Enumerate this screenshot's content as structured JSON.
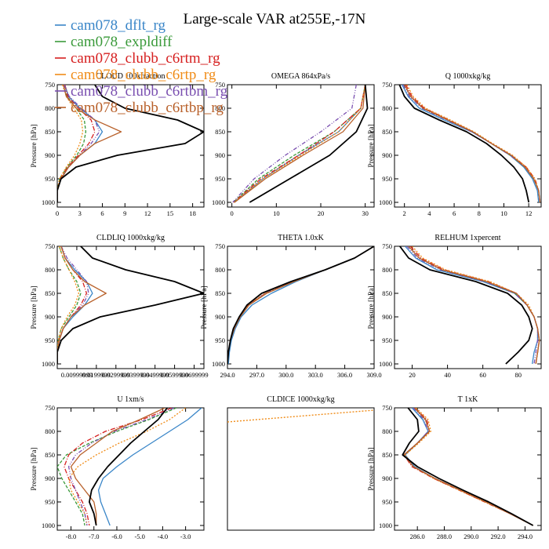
{
  "title": "Large-scale VAR at255E,-17N",
  "legend": [
    {
      "name": "cam078_dflt_rg",
      "color": "#3a86c8"
    },
    {
      "name": "cam078_expldiff",
      "color": "#3a9a3a"
    },
    {
      "name": "cam078_clubb_c6rtm_rg",
      "color": "#d62020"
    },
    {
      "name": "cam078_clubb_c6rtp_rg",
      "color": "#f08c18"
    },
    {
      "name": "cam078_clubb_c6rtbm_rg",
      "color": "#7a4fb0"
    },
    {
      "name": "cam078_clubb_c6rtbp_rg",
      "color": "#b8602a"
    }
  ],
  "black_color": "#000000",
  "chart_data": [
    {
      "type": "line",
      "title": "CLOUD 100xfraction",
      "ylabel": "Pressure [hPa]",
      "xlim": [
        0,
        19.5
      ],
      "ylim": [
        1010,
        750
      ],
      "xticks": [
        0,
        3,
        6,
        9,
        12,
        15,
        18
      ],
      "xticklabels": [
        "0",
        "3",
        "6",
        "9",
        "12",
        "15",
        "18"
      ],
      "yticks": [
        750,
        800,
        850,
        900,
        950,
        1000
      ],
      "y": [
        750,
        775,
        800,
        825,
        850,
        875,
        900,
        925,
        950,
        975,
        1000
      ],
      "black": [
        5,
        6,
        9,
        16,
        19.5,
        17,
        8,
        2.5,
        0.5,
        0,
        0
      ],
      "series": [
        {
          "values": [
            1.0,
            1.5,
            3.0,
            5.0,
            6.0,
            5.0,
            3.0,
            1.5,
            0.5,
            0,
            0
          ]
        },
        {
          "values": [
            0.8,
            1.3,
            2.5,
            3.6,
            3.8,
            3.5,
            2.6,
            1.3,
            0.3,
            0,
            0
          ]
        },
        {
          "values": [
            1.0,
            1.4,
            2.8,
            4.5,
            5.0,
            4.2,
            2.8,
            1.4,
            0.4,
            0,
            0
          ]
        },
        {
          "values": [
            0.7,
            1.2,
            2.2,
            3.2,
            3.4,
            3.0,
            2.3,
            1.2,
            0.3,
            0,
            0
          ]
        },
        {
          "values": [
            0.9,
            1.6,
            3.2,
            5.0,
            5.6,
            4.5,
            3.0,
            1.5,
            0.5,
            0,
            0
          ]
        },
        {
          "values": [
            0.8,
            1.2,
            2.5,
            5.0,
            8.5,
            5.0,
            3.0,
            1.5,
            0.5,
            0,
            0
          ]
        }
      ]
    },
    {
      "type": "line",
      "title": "OMEGA 864xPa/s",
      "ylabel": "",
      "xlim": [
        -1,
        32
      ],
      "ylim": [
        1010,
        750
      ],
      "xticks": [
        0,
        10,
        20,
        30
      ],
      "xticklabels": [
        "0",
        "10",
        "20",
        "30"
      ],
      "yticks": [
        750,
        800,
        850,
        900,
        950,
        1000
      ],
      "y": [
        750,
        800,
        850,
        900,
        950,
        1000
      ],
      "black": [
        30,
        30.5,
        28,
        22,
        13,
        4
      ],
      "series": [
        {
          "values": [
            30,
            29,
            24,
            15,
            7,
            0.5
          ]
        },
        {
          "values": [
            30,
            29,
            23,
            14,
            6,
            0.3
          ]
        },
        {
          "values": [
            30,
            29,
            23,
            15,
            6.5,
            0.4
          ]
        },
        {
          "values": [
            30,
            29,
            24,
            15.5,
            7,
            0.5
          ]
        },
        {
          "values": [
            28,
            27,
            20,
            12,
            5,
            0.2
          ]
        },
        {
          "values": [
            30,
            29.5,
            25,
            16,
            7.5,
            0.6
          ]
        }
      ]
    },
    {
      "type": "line",
      "title": "Q 1000xkg/kg",
      "ylabel": "Pressure [hPa]",
      "xlim": [
        1.2,
        13
      ],
      "ylim": [
        1010,
        750
      ],
      "xticks": [
        2,
        4,
        6,
        8,
        10,
        12
      ],
      "xticklabels": [
        "2",
        "4",
        "6",
        "8",
        "10",
        "12"
      ],
      "yticks": [
        750,
        800,
        850,
        900,
        950,
        1000
      ],
      "y": [
        750,
        775,
        800,
        825,
        850,
        875,
        900,
        925,
        950,
        975,
        1000
      ],
      "black": [
        1.6,
        2.0,
        2.8,
        4.8,
        7.0,
        8.6,
        9.8,
        10.8,
        11.5,
        11.8,
        12.0
      ],
      "series": [
        {
          "values": [
            1.8,
            2.3,
            3.2,
            5.2,
            7.4,
            9.0,
            10.5,
            11.6,
            12.3,
            12.7,
            12.8
          ]
        },
        {
          "values": [
            2.0,
            2.5,
            3.5,
            5.5,
            7.5,
            9.0,
            10.5,
            11.7,
            12.4,
            12.8,
            12.9
          ]
        },
        {
          "values": [
            2.1,
            2.6,
            3.6,
            5.6,
            7.5,
            9.0,
            10.6,
            11.8,
            12.5,
            12.8,
            12.9
          ]
        },
        {
          "values": [
            2.2,
            2.7,
            3.7,
            5.7,
            7.6,
            9.1,
            10.7,
            11.8,
            12.5,
            12.8,
            12.9
          ]
        },
        {
          "values": [
            1.9,
            2.4,
            3.4,
            5.4,
            7.4,
            9.0,
            10.5,
            11.7,
            12.4,
            12.8,
            12.9
          ]
        },
        {
          "values": [
            2.0,
            2.5,
            3.5,
            5.5,
            7.5,
            9.0,
            10.6,
            11.7,
            12.4,
            12.8,
            12.9
          ]
        }
      ]
    },
    {
      "type": "line",
      "title": "CLDLIQ 1000xkg/kg",
      "ylabel": "Pressure [hPa]",
      "xlim": [
        0,
        0.075
      ],
      "ylim": [
        1010,
        750
      ],
      "xticks": [
        0.01,
        0.02,
        0.03,
        0.04,
        0.05,
        0.06,
        0.07
      ],
      "xticklabels": [
        "0.00999999",
        "0.0199999",
        "0.0299999",
        "0.0399999",
        "0.0499999",
        "0.0599999",
        "0.0699999"
      ],
      "yticks": [
        750,
        800,
        850,
        900,
        950,
        1000
      ],
      "y": [
        750,
        775,
        800,
        825,
        850,
        875,
        900,
        925,
        950,
        975,
        1000
      ],
      "black": [
        0.012,
        0.018,
        0.035,
        0.06,
        0.075,
        0.05,
        0.022,
        0.008,
        0.002,
        0,
        0
      ],
      "series": [
        {
          "values": [
            0.002,
            0.004,
            0.009,
            0.015,
            0.018,
            0.014,
            0.008,
            0.003,
            0.001,
            0,
            0
          ]
        },
        {
          "values": [
            0.001,
            0.003,
            0.006,
            0.01,
            0.012,
            0.01,
            0.006,
            0.002,
            0.0005,
            0,
            0
          ]
        },
        {
          "values": [
            0.002,
            0.004,
            0.008,
            0.013,
            0.015,
            0.012,
            0.007,
            0.003,
            0.001,
            0,
            0
          ]
        },
        {
          "values": [
            0.001,
            0.003,
            0.006,
            0.009,
            0.011,
            0.009,
            0.005,
            0.002,
            0.0005,
            0,
            0
          ]
        },
        {
          "values": [
            0.002,
            0.005,
            0.01,
            0.015,
            0.016,
            0.013,
            0.007,
            0.003,
            0.001,
            0,
            0
          ]
        },
        {
          "values": [
            0.002,
            0.004,
            0.008,
            0.014,
            0.025,
            0.014,
            0.007,
            0.003,
            0.001,
            0,
            0
          ]
        }
      ]
    },
    {
      "type": "line",
      "title": "THETA 1.0xK",
      "ylabel": "Pressure [hPa]",
      "xlim": [
        294,
        309
      ],
      "ylim": [
        1010,
        750
      ],
      "xticks": [
        294,
        297,
        300,
        303,
        306,
        309
      ],
      "xticklabels": [
        "294.0",
        "297.0",
        "300.0",
        "303.0",
        "306.0",
        "309.0"
      ],
      "yticks": [
        750,
        800,
        850,
        900,
        950,
        1000
      ],
      "y": [
        750,
        775,
        800,
        825,
        850,
        875,
        900,
        925,
        950,
        975,
        1000
      ],
      "black": [
        309,
        307,
        304,
        300.5,
        297.5,
        296.0,
        295.2,
        294.6,
        294.3,
        294.1,
        294.0
      ],
      "series": [
        {
          "values": [
            309,
            307,
            304,
            301,
            298.5,
            296.5,
            295.4,
            294.8,
            294.4,
            294.2,
            294.1
          ]
        },
        {
          "values": [
            309,
            307,
            304,
            300.8,
            298.0,
            296.2,
            295.3,
            294.7,
            294.3,
            294.1,
            294.0
          ]
        },
        {
          "values": [
            309,
            307,
            304,
            300.7,
            297.9,
            296.1,
            295.2,
            294.7,
            294.3,
            294.1,
            294.0
          ]
        },
        {
          "values": [
            309,
            307,
            304,
            300.6,
            297.8,
            296.1,
            295.2,
            294.6,
            294.3,
            294.1,
            294.0
          ]
        },
        {
          "values": [
            309,
            307,
            304,
            300.7,
            297.9,
            296.2,
            295.3,
            294.7,
            294.3,
            294.1,
            294.0
          ]
        },
        {
          "values": [
            309,
            307,
            304,
            300.8,
            298.0,
            296.2,
            295.3,
            294.7,
            294.3,
            294.1,
            294.0
          ]
        }
      ]
    },
    {
      "type": "line",
      "title": "RELHUM 1xpercent",
      "ylabel": "Pressure [hPa]",
      "xlim": [
        10,
        93
      ],
      "ylim": [
        1010,
        750
      ],
      "xticks": [
        20,
        40,
        60,
        80
      ],
      "xticklabels": [
        "20",
        "40",
        "60",
        "80"
      ],
      "yticks": [
        750,
        800,
        850,
        900,
        950,
        1000
      ],
      "y": [
        750,
        775,
        800,
        825,
        850,
        875,
        900,
        925,
        950,
        975,
        1000
      ],
      "black": [
        13,
        18,
        30,
        56,
        74,
        82,
        86,
        88,
        86,
        80,
        73
      ],
      "series": [
        {
          "values": [
            16,
            22,
            34,
            60,
            78,
            85,
            89,
            91,
            91,
            89,
            88
          ]
        },
        {
          "values": [
            18,
            24,
            37,
            62,
            78,
            85,
            89,
            91,
            92,
            91,
            90
          ]
        },
        {
          "values": [
            19,
            25,
            38,
            63,
            79,
            85,
            89,
            91,
            92,
            91,
            90
          ]
        },
        {
          "values": [
            20,
            26,
            39,
            64,
            79,
            86,
            89,
            91,
            92,
            91,
            90
          ]
        },
        {
          "values": [
            17,
            23,
            36,
            61,
            78,
            85,
            89,
            91,
            91,
            90,
            89
          ]
        },
        {
          "values": [
            18,
            24,
            37,
            62,
            79,
            85,
            89,
            91,
            92,
            91,
            90
          ]
        }
      ]
    },
    {
      "type": "line",
      "title": "U 1xm/s",
      "ylabel": "Pressure [hPa]",
      "xlim": [
        -8.6,
        -2.2
      ],
      "ylim": [
        1010,
        750
      ],
      "xticks": [
        -8,
        -7,
        -6,
        -5,
        -4,
        -3
      ],
      "xticklabels": [
        "-8.0",
        "-7.0",
        "-6.0",
        "-5.0",
        "-4.0",
        "-3.0"
      ],
      "yticks": [
        750,
        800,
        850,
        900,
        950,
        1000
      ],
      "y": [
        750,
        775,
        800,
        825,
        850,
        875,
        900,
        925,
        950,
        975,
        1000
      ],
      "black": [
        -3.8,
        -4.2,
        -4.8,
        -5.4,
        -5.9,
        -6.4,
        -6.8,
        -7.1,
        -7.2,
        -7.0,
        -6.9
      ],
      "series": [
        {
          "values": [
            -2.3,
            -2.9,
            -3.7,
            -4.5,
            -5.3,
            -6.0,
            -6.6,
            -6.8,
            -6.7,
            -6.5,
            -6.3
          ]
        },
        {
          "values": [
            -3.4,
            -4.6,
            -6.0,
            -7.2,
            -8.2,
            -8.6,
            -8.4,
            -8.1,
            -7.8,
            -7.5,
            -7.4
          ]
        },
        {
          "values": [
            -3.6,
            -4.9,
            -6.5,
            -7.5,
            -8.1,
            -8.3,
            -8.1,
            -7.8,
            -7.5,
            -7.3,
            -7.2
          ]
        },
        {
          "values": [
            -3.0,
            -3.7,
            -4.7,
            -5.9,
            -6.9,
            -7.7,
            -8.1,
            -8.0,
            -7.7,
            -7.4,
            -7.3
          ]
        },
        {
          "values": [
            -3.5,
            -4.7,
            -6.1,
            -7.1,
            -7.8,
            -8.1,
            -8.0,
            -7.8,
            -7.6,
            -7.4,
            -7.3
          ]
        },
        {
          "values": [
            -3.9,
            -5.0,
            -6.2,
            -6.9,
            -7.6,
            -8.0,
            -7.8,
            -7.4,
            -7.0,
            -6.9,
            -6.9
          ]
        }
      ]
    },
    {
      "type": "line",
      "title": "CLDICE 1000xkg/kg",
      "ylabel": "",
      "xlim": [
        0,
        1
      ],
      "ylim": [
        1010,
        750
      ],
      "xticks": [],
      "xticklabels": [],
      "yticks": [],
      "y": [
        750,
        1010
      ],
      "black": null,
      "series": [
        {
          "values": [
            null,
            null
          ]
        },
        {
          "values": [
            null,
            null
          ]
        },
        {
          "values": [
            null,
            null
          ]
        },
        {
          "values": [
            null,
            null
          ]
        },
        {
          "values": [
            null,
            null
          ]
        },
        {
          "values": [
            null,
            null
          ]
        }
      ],
      "dotted": {
        "x": [
          0.0,
          1.0
        ],
        "y": [
          780,
          755
        ]
      }
    },
    {
      "type": "line",
      "title": "T 1xK",
      "ylabel": "Pressure [hPa]",
      "xlim": [
        284.3,
        295.2
      ],
      "ylim": [
        1010,
        750
      ],
      "xticks": [
        286,
        288,
        290,
        292,
        294
      ],
      "xticklabels": [
        "286.0",
        "288.0",
        "290.0",
        "292.0",
        "294.0"
      ],
      "yticks": [
        750,
        800,
        850,
        900,
        950,
        1000
      ],
      "y": [
        750,
        775,
        800,
        825,
        850,
        875,
        900,
        925,
        950,
        975,
        1000
      ],
      "black": [
        285.3,
        286.0,
        286.1,
        285.4,
        284.9,
        286.0,
        287.6,
        289.4,
        291.3,
        293.0,
        294.6
      ],
      "series": [
        {
          "values": [
            285.6,
            286.4,
            286.8,
            286.0,
            285.1,
            285.8,
            287.3,
            289.2,
            291.1,
            292.9,
            294.6
          ]
        },
        {
          "values": [
            285.8,
            286.6,
            286.9,
            286.0,
            285.0,
            285.7,
            287.3,
            289.2,
            291.1,
            292.9,
            294.6
          ]
        },
        {
          "values": [
            285.8,
            286.7,
            286.9,
            286.0,
            285.0,
            285.6,
            287.2,
            289.1,
            291.0,
            292.9,
            294.6
          ]
        },
        {
          "values": [
            285.9,
            286.8,
            287.0,
            286.1,
            285.1,
            285.7,
            287.2,
            289.1,
            291.0,
            292.9,
            294.6
          ]
        },
        {
          "values": [
            285.7,
            286.5,
            286.8,
            286.0,
            285.0,
            285.7,
            287.3,
            289.2,
            291.1,
            292.9,
            294.6
          ]
        },
        {
          "values": [
            285.8,
            286.6,
            286.9,
            286.0,
            285.0,
            285.7,
            287.3,
            289.2,
            291.1,
            292.9,
            294.6
          ]
        }
      ]
    }
  ]
}
